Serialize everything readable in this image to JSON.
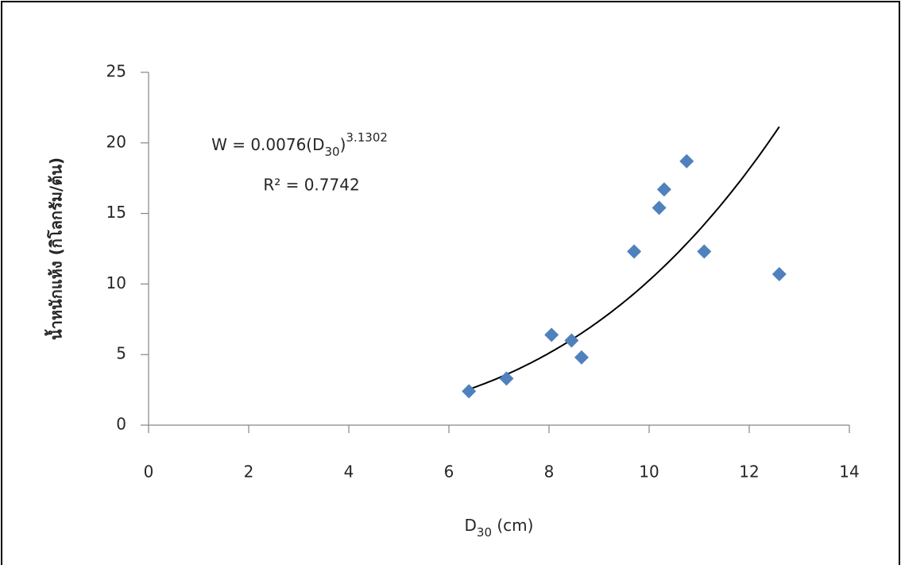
{
  "chart_data": {
    "type": "scatter",
    "x": [
      6.4,
      7.15,
      8.05,
      8.45,
      8.65,
      9.7,
      10.2,
      10.3,
      10.75,
      11.1,
      12.6
    ],
    "values": [
      2.4,
      3.3,
      6.4,
      6.0,
      4.8,
      12.3,
      15.4,
      16.7,
      18.7,
      12.3,
      10.7
    ],
    "color": "#4f81bd",
    "xlim": [
      0,
      14
    ],
    "xticks": [
      0,
      2,
      4,
      6,
      8,
      10,
      12,
      14
    ],
    "ylim": [
      0,
      25
    ],
    "yticks": [
      0,
      5,
      10,
      15,
      20,
      25
    ],
    "x_label": [
      "D",
      "30",
      " (cm)"
    ],
    "y_label": "น้ำหนักแห้ง (กิโลกรัม/ต้น)",
    "trendline": {
      "type": "power",
      "a": 0.0076,
      "b": 3.1302
    },
    "equation": [
      "W = 0.0076(D",
      "30",
      ")",
      "3.1302"
    ],
    "r2": "R² = 0.7742"
  }
}
